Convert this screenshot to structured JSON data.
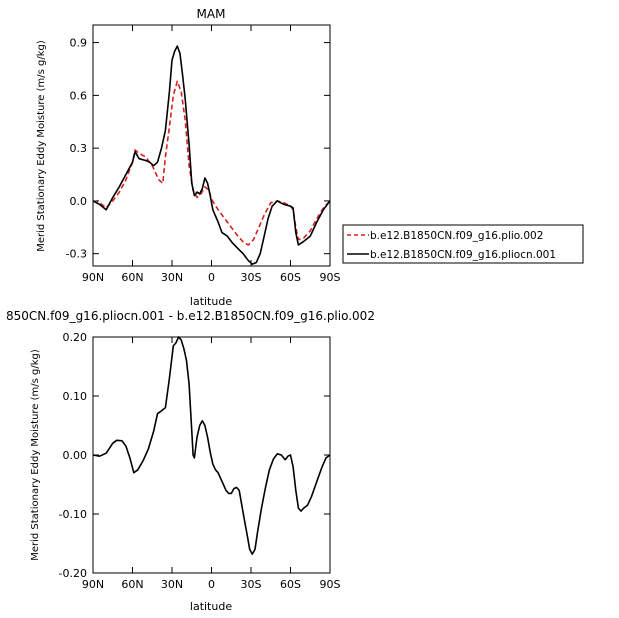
{
  "chart_data": [
    {
      "type": "line",
      "title": "MAM",
      "xlabel": "latitude",
      "ylabel": "Merid Stationary Eddy Moisture (m/s g/kg)",
      "x_ticks": [
        {
          "v": 90,
          "label": "90N"
        },
        {
          "v": 60,
          "label": "60N"
        },
        {
          "v": 30,
          "label": "30N"
        },
        {
          "v": 0,
          "label": "0"
        },
        {
          "v": -30,
          "label": "30S"
        },
        {
          "v": -60,
          "label": "60S"
        },
        {
          "v": -90,
          "label": "90S"
        }
      ],
      "y_ticks": [
        {
          "v": 0.9,
          "label": "0.9"
        },
        {
          "v": 0.6,
          "label": "0.6"
        },
        {
          "v": 0.3,
          "label": "0.3"
        },
        {
          "v": 0.0,
          "label": "0.0"
        },
        {
          "v": -0.3,
          "label": "-0.3"
        }
      ],
      "xlim": [
        90,
        -90
      ],
      "ylim": [
        -0.37,
        1.0
      ],
      "legend_position": "right",
      "series": [
        {
          "name": "b.e12.B1850CN.f09_g16.plio.002",
          "color": "#d62020",
          "dash": "dashed",
          "points": [
            [
              90,
              0.0
            ],
            [
              85,
              -0.01
            ],
            [
              80,
              -0.04
            ],
            [
              75,
              0.0
            ],
            [
              70,
              0.05
            ],
            [
              65,
              0.12
            ],
            [
              60,
              0.22
            ],
            [
              58,
              0.29
            ],
            [
              55,
              0.27
            ],
            [
              50,
              0.25
            ],
            [
              45,
              0.2
            ],
            [
              40,
              0.12
            ],
            [
              37,
              0.1
            ],
            [
              35,
              0.25
            ],
            [
              32,
              0.42
            ],
            [
              29,
              0.6
            ],
            [
              26,
              0.68
            ],
            [
              23,
              0.62
            ],
            [
              20,
              0.46
            ],
            [
              17,
              0.2
            ],
            [
              14,
              0.06
            ],
            [
              11,
              0.02
            ],
            [
              8,
              0.04
            ],
            [
              5,
              0.08
            ],
            [
              2,
              0.06
            ],
            [
              0,
              0.01
            ],
            [
              -5,
              -0.05
            ],
            [
              -10,
              -0.1
            ],
            [
              -15,
              -0.15
            ],
            [
              -20,
              -0.2
            ],
            [
              -25,
              -0.24
            ],
            [
              -28,
              -0.25
            ],
            [
              -32,
              -0.22
            ],
            [
              -36,
              -0.15
            ],
            [
              -40,
              -0.08
            ],
            [
              -45,
              -0.01
            ],
            [
              -50,
              0.0
            ],
            [
              -55,
              -0.01
            ],
            [
              -60,
              -0.03
            ],
            [
              -62,
              -0.05
            ],
            [
              -64,
              -0.15
            ],
            [
              -66,
              -0.22
            ],
            [
              -70,
              -0.21
            ],
            [
              -75,
              -0.17
            ],
            [
              -80,
              -0.1
            ],
            [
              -85,
              -0.04
            ],
            [
              -90,
              0.0
            ]
          ]
        },
        {
          "name": "b.e12.B1850CN.f09_g16.pliocn.001",
          "color": "#000000",
          "dash": "solid",
          "points": [
            [
              90,
              0.0
            ],
            [
              85,
              -0.02
            ],
            [
              80,
              -0.05
            ],
            [
              75,
              0.02
            ],
            [
              70,
              0.08
            ],
            [
              65,
              0.15
            ],
            [
              60,
              0.22
            ],
            [
              58,
              0.28
            ],
            [
              55,
              0.24
            ],
            [
              50,
              0.23
            ],
            [
              47,
              0.22
            ],
            [
              44,
              0.2
            ],
            [
              41,
              0.22
            ],
            [
              38,
              0.3
            ],
            [
              35,
              0.4
            ],
            [
              32,
              0.62
            ],
            [
              30,
              0.8
            ],
            [
              28,
              0.85
            ],
            [
              26,
              0.88
            ],
            [
              24,
              0.84
            ],
            [
              22,
              0.72
            ],
            [
              20,
              0.58
            ],
            [
              17,
              0.32
            ],
            [
              15,
              0.1
            ],
            [
              13,
              0.03
            ],
            [
              11,
              0.05
            ],
            [
              9,
              0.04
            ],
            [
              7,
              0.07
            ],
            [
              5,
              0.13
            ],
            [
              3,
              0.1
            ],
            [
              1,
              0.03
            ],
            [
              -1,
              -0.05
            ],
            [
              -5,
              -0.12
            ],
            [
              -8,
              -0.18
            ],
            [
              -12,
              -0.2
            ],
            [
              -16,
              -0.24
            ],
            [
              -20,
              -0.27
            ],
            [
              -24,
              -0.3
            ],
            [
              -28,
              -0.34
            ],
            [
              -31,
              -0.36
            ],
            [
              -34,
              -0.35
            ],
            [
              -37,
              -0.3
            ],
            [
              -40,
              -0.2
            ],
            [
              -43,
              -0.1
            ],
            [
              -46,
              -0.03
            ],
            [
              -50,
              0.0
            ],
            [
              -55,
              -0.02
            ],
            [
              -60,
              -0.03
            ],
            [
              -62,
              -0.04
            ],
            [
              -64,
              -0.18
            ],
            [
              -66,
              -0.25
            ],
            [
              -70,
              -0.23
            ],
            [
              -75,
              -0.2
            ],
            [
              -80,
              -0.12
            ],
            [
              -85,
              -0.05
            ],
            [
              -90,
              0.0
            ]
          ]
        }
      ]
    },
    {
      "type": "line",
      "title": "850CN.f09_g16.pliocn.001 - b.e12.B1850CN.f09_g16.plio.002",
      "xlabel": "latitude",
      "ylabel": "Merid Stationary Eddy Moisture (m/s g/kg)",
      "x_ticks": [
        {
          "v": 90,
          "label": "90N"
        },
        {
          "v": 60,
          "label": "60N"
        },
        {
          "v": 30,
          "label": "30N"
        },
        {
          "v": 0,
          "label": "0"
        },
        {
          "v": -30,
          "label": "30S"
        },
        {
          "v": -60,
          "label": "60S"
        },
        {
          "v": -90,
          "label": "90S"
        }
      ],
      "y_ticks": [
        {
          "v": 0.2,
          "label": "0.20"
        },
        {
          "v": 0.1,
          "label": "0.10"
        },
        {
          "v": 0.0,
          "label": "0.00"
        },
        {
          "v": -0.1,
          "label": "-0.10"
        },
        {
          "v": -0.2,
          "label": "-0.20"
        }
      ],
      "xlim": [
        90,
        -90
      ],
      "ylim": [
        -0.2,
        0.2
      ],
      "series": [
        {
          "color": "#000000",
          "dash": "solid",
          "points": [
            [
              90,
              0.0
            ],
            [
              85,
              -0.002
            ],
            [
              80,
              0.003
            ],
            [
              75,
              0.02
            ],
            [
              72,
              0.025
            ],
            [
              68,
              0.024
            ],
            [
              65,
              0.015
            ],
            [
              62,
              -0.005
            ],
            [
              59,
              -0.03
            ],
            [
              56,
              -0.025
            ],
            [
              52,
              -0.01
            ],
            [
              48,
              0.01
            ],
            [
              44,
              0.04
            ],
            [
              41,
              0.07
            ],
            [
              38,
              0.075
            ],
            [
              35,
              0.08
            ],
            [
              32,
              0.13
            ],
            [
              29,
              0.185
            ],
            [
              27,
              0.19
            ],
            [
              25,
              0.2
            ],
            [
              23,
              0.195
            ],
            [
              21,
              0.18
            ],
            [
              19,
              0.16
            ],
            [
              17,
              0.12
            ],
            [
              15,
              0.04
            ],
            [
              14,
              0.0
            ],
            [
              13,
              -0.005
            ],
            [
              11,
              0.03
            ],
            [
              9,
              0.05
            ],
            [
              7,
              0.058
            ],
            [
              5,
              0.05
            ],
            [
              3,
              0.03
            ],
            [
              1,
              0.005
            ],
            [
              -1,
              -0.015
            ],
            [
              -3,
              -0.025
            ],
            [
              -5,
              -0.03
            ],
            [
              -7,
              -0.04
            ],
            [
              -9,
              -0.05
            ],
            [
              -11,
              -0.06
            ],
            [
              -13,
              -0.065
            ],
            [
              -15,
              -0.065
            ],
            [
              -17,
              -0.057
            ],
            [
              -19,
              -0.055
            ],
            [
              -21,
              -0.06
            ],
            [
              -23,
              -0.085
            ],
            [
              -25,
              -0.11
            ],
            [
              -27,
              -0.135
            ],
            [
              -29,
              -0.16
            ],
            [
              -31,
              -0.168
            ],
            [
              -33,
              -0.16
            ],
            [
              -35,
              -0.13
            ],
            [
              -38,
              -0.09
            ],
            [
              -41,
              -0.055
            ],
            [
              -44,
              -0.025
            ],
            [
              -47,
              -0.007
            ],
            [
              -50,
              0.002
            ],
            [
              -53,
              0.0
            ],
            [
              -56,
              -0.008
            ],
            [
              -58,
              -0.002
            ],
            [
              -60,
              0.0
            ],
            [
              -62,
              -0.02
            ],
            [
              -64,
              -0.06
            ],
            [
              -66,
              -0.09
            ],
            [
              -68,
              -0.095
            ],
            [
              -70,
              -0.09
            ],
            [
              -73,
              -0.085
            ],
            [
              -76,
              -0.07
            ],
            [
              -80,
              -0.045
            ],
            [
              -84,
              -0.02
            ],
            [
              -87,
              -0.005
            ],
            [
              -90,
              0.0
            ]
          ]
        }
      ]
    }
  ]
}
